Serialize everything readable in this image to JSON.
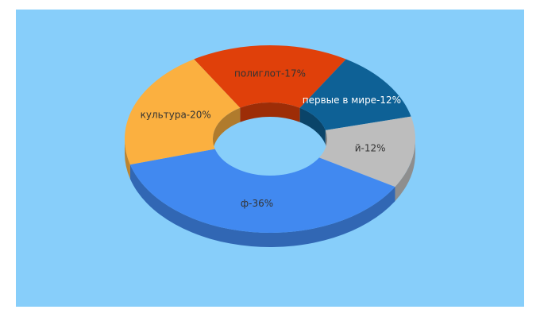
{
  "chart_data": {
    "type": "donut3d",
    "labels": [
      "полиглот-17%",
      "первые в мире-12%",
      "й-12%",
      "ф-36%",
      "культура-20%"
    ],
    "values": [
      17,
      12,
      12,
      36,
      20
    ],
    "colors": [
      "#e0400a",
      "#0e6196",
      "#bdbdbd",
      "#4189f0",
      "#fbb040"
    ]
  }
}
